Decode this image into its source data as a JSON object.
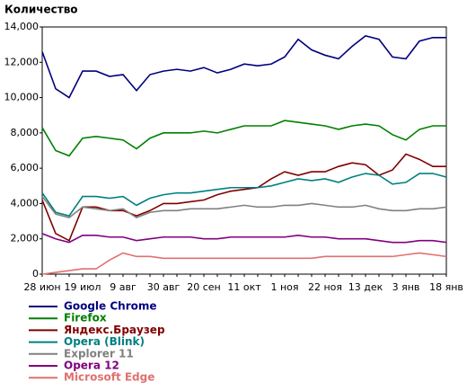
{
  "chart_data": {
    "type": "line",
    "title": "Количество",
    "categories": [
      "28 июн",
      null,
      null,
      "19 июл",
      null,
      null,
      "9 авг",
      null,
      null,
      "30 авг",
      null,
      null,
      "20 сен",
      null,
      null,
      "11 окт",
      null,
      null,
      "1 ноя",
      null,
      null,
      "22 ноя",
      null,
      null,
      "13 дек",
      null,
      null,
      "3 янв",
      null,
      null,
      "18 янв"
    ],
    "ylim": [
      0,
      14000
    ],
    "yticks": [
      0,
      {
        "value": 2000,
        "label": "2,000"
      },
      {
        "value": 4000,
        "label": "4,000"
      },
      {
        "value": 6000,
        "label": "6,000"
      },
      {
        "value": 8000,
        "label": "8,000"
      },
      {
        "value": 10000,
        "label": "10,000"
      },
      {
        "value": 12000,
        "label": "12,000"
      },
      {
        "value": 14000,
        "label": "14,000"
      }
    ],
    "grid": false,
    "series": [
      {
        "name": "Google Chrome",
        "color": "#000080",
        "values": [
          12600,
          10500,
          10000,
          11500,
          11500,
          11200,
          11300,
          10400,
          11300,
          11500,
          11600,
          11500,
          11700,
          11400,
          11600,
          11900,
          11800,
          11900,
          12300,
          13300,
          12700,
          12400,
          12200,
          12900,
          13500,
          13300,
          12300,
          12200,
          13200,
          13400,
          13400
        ]
      },
      {
        "name": "Firefox",
        "color": "#008000",
        "values": [
          8300,
          7000,
          6700,
          7700,
          7800,
          7700,
          7600,
          7100,
          7700,
          8000,
          8000,
          8000,
          8100,
          8000,
          8200,
          8400,
          8400,
          8400,
          8700,
          8600,
          8500,
          8400,
          8200,
          8400,
          8500,
          8400,
          7900,
          7600,
          8200,
          8400,
          8400
        ]
      },
      {
        "name": "Яндекс.Браузер",
        "color": "#800000",
        "values": [
          4200,
          2300,
          1900,
          3800,
          3800,
          3600,
          3600,
          3300,
          3600,
          4000,
          4000,
          4100,
          4200,
          4500,
          4700,
          4800,
          4900,
          5400,
          5800,
          5600,
          5800,
          5800,
          6100,
          6300,
          6200,
          5600,
          5900,
          6800,
          6500,
          6100,
          6100
        ]
      },
      {
        "name": "Opera (Blink)",
        "color": "#008080",
        "values": [
          4600,
          3500,
          3300,
          4400,
          4400,
          4300,
          4400,
          3900,
          4300,
          4500,
          4600,
          4600,
          4700,
          4800,
          4900,
          4900,
          4900,
          5000,
          5200,
          5400,
          5300,
          5400,
          5200,
          5500,
          5700,
          5600,
          5100,
          5200,
          5700,
          5700,
          5500
        ]
      },
      {
        "name": "Explorer 11",
        "color": "#808080",
        "values": [
          4400,
          3400,
          3200,
          3800,
          3700,
          3600,
          3700,
          3200,
          3500,
          3600,
          3600,
          3700,
          3700,
          3700,
          3800,
          3900,
          3800,
          3800,
          3900,
          3900,
          4000,
          3900,
          3800,
          3800,
          3900,
          3700,
          3600,
          3600,
          3700,
          3700,
          3800
        ]
      },
      {
        "name": "Opera 12",
        "color": "#800080",
        "values": [
          2300,
          2000,
          1800,
          2200,
          2200,
          2100,
          2100,
          1900,
          2000,
          2100,
          2100,
          2100,
          2000,
          2000,
          2100,
          2100,
          2100,
          2100,
          2100,
          2200,
          2100,
          2100,
          2000,
          2000,
          2000,
          1900,
          1800,
          1800,
          1900,
          1900,
          1800
        ]
      },
      {
        "name": "Microsoft Edge",
        "color": "#e07070",
        "values": [
          0,
          100,
          200,
          300,
          300,
          800,
          1200,
          1000,
          1000,
          900,
          900,
          900,
          900,
          900,
          900,
          900,
          900,
          900,
          900,
          900,
          900,
          1000,
          1000,
          1000,
          1000,
          1000,
          1000,
          1100,
          1200,
          1100,
          1000
        ]
      }
    ]
  }
}
